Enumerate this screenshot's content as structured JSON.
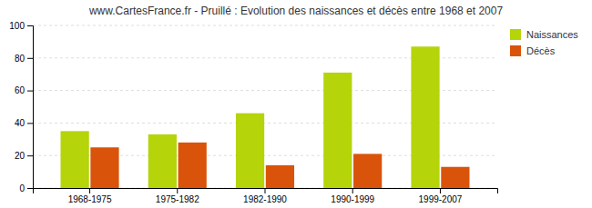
{
  "chart_data": {
    "type": "bar",
    "title": "www.CartesFrance.fr - Pruillé : Evolution des naissances et décès entre 1968 et 2007",
    "categories": [
      "1968-1975",
      "1975-1982",
      "1982-1990",
      "1990-1999",
      "1999-2007"
    ],
    "series": [
      {
        "name": "Naissances",
        "color": "#b5d40a",
        "values": [
          35,
          33,
          46,
          71,
          87
        ]
      },
      {
        "name": "Décès",
        "color": "#d9530a",
        "values": [
          25,
          28,
          14,
          21,
          13
        ]
      }
    ],
    "ylim": [
      0,
      100
    ],
    "yticks": [
      0,
      20,
      40,
      60,
      80,
      100
    ],
    "grid": true,
    "legend": "upper right"
  }
}
